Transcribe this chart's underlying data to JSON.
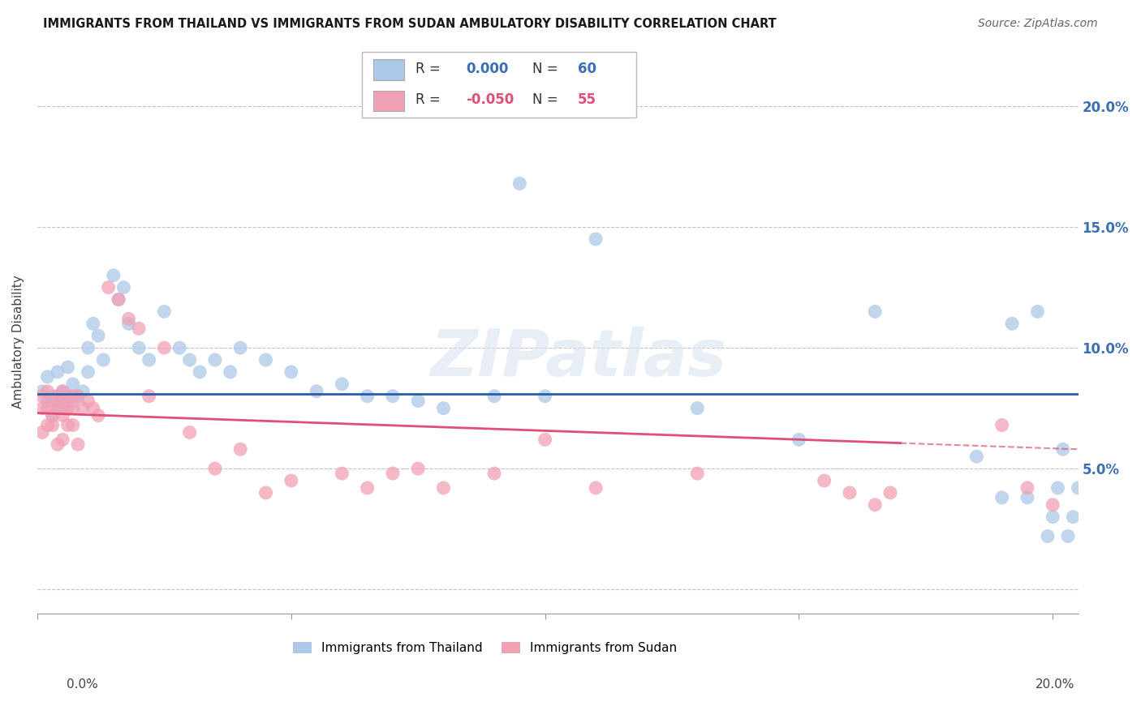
{
  "title": "IMMIGRANTS FROM THAILAND VS IMMIGRANTS FROM SUDAN AMBULATORY DISABILITY CORRELATION CHART",
  "source": "Source: ZipAtlas.com",
  "ylabel": "Ambulatory Disability",
  "yticks": [
    0.0,
    0.05,
    0.1,
    0.15,
    0.2
  ],
  "ytick_labels": [
    "",
    "5.0%",
    "10.0%",
    "15.0%",
    "20.0%"
  ],
  "xlim": [
    0.0,
    0.205
  ],
  "ylim": [
    -0.01,
    0.215
  ],
  "R_thailand": "0.000",
  "N_thailand": "60",
  "R_sudan": "-0.050",
  "N_sudan": "55",
  "color_thailand": "#adc8e8",
  "color_sudan": "#f2a0b5",
  "trendline_thailand_color": "#2b5ca8",
  "trendline_sudan_color": "#e05075",
  "trendline_thailand_y": 0.081,
  "trendline_sudan_x0": 0.0,
  "trendline_sudan_y0": 0.073,
  "trendline_sudan_x1": 0.205,
  "trendline_sudan_y1": 0.058,
  "trendline_sudan_solid_end": 0.17,
  "watermark": "ZIPatlas",
  "legend_label1": "Immigrants from Thailand",
  "legend_label2": "Immigrants from Sudan",
  "thailand_x": [
    0.001,
    0.002,
    0.002,
    0.003,
    0.003,
    0.004,
    0.004,
    0.005,
    0.005,
    0.006,
    0.006,
    0.007,
    0.007,
    0.008,
    0.009,
    0.01,
    0.01,
    0.011,
    0.012,
    0.013,
    0.015,
    0.016,
    0.017,
    0.018,
    0.02,
    0.022,
    0.025,
    0.028,
    0.03,
    0.032,
    0.035,
    0.038,
    0.04,
    0.045,
    0.05,
    0.055,
    0.06,
    0.065,
    0.07,
    0.075,
    0.08,
    0.09,
    0.095,
    0.1,
    0.11,
    0.13,
    0.15,
    0.165,
    0.185,
    0.19,
    0.192,
    0.195,
    0.197,
    0.199,
    0.2,
    0.201,
    0.202,
    0.203,
    0.204,
    0.205
  ],
  "thailand_y": [
    0.082,
    0.078,
    0.088,
    0.08,
    0.072,
    0.076,
    0.09,
    0.082,
    0.075,
    0.08,
    0.092,
    0.085,
    0.078,
    0.08,
    0.082,
    0.09,
    0.1,
    0.11,
    0.105,
    0.095,
    0.13,
    0.12,
    0.125,
    0.11,
    0.1,
    0.095,
    0.115,
    0.1,
    0.095,
    0.09,
    0.095,
    0.09,
    0.1,
    0.095,
    0.09,
    0.082,
    0.085,
    0.08,
    0.08,
    0.078,
    0.075,
    0.08,
    0.168,
    0.08,
    0.145,
    0.075,
    0.062,
    0.115,
    0.055,
    0.038,
    0.11,
    0.038,
    0.115,
    0.022,
    0.03,
    0.042,
    0.058,
    0.022,
    0.03,
    0.042
  ],
  "sudan_x": [
    0.001,
    0.001,
    0.001,
    0.002,
    0.002,
    0.002,
    0.003,
    0.003,
    0.003,
    0.004,
    0.004,
    0.004,
    0.005,
    0.005,
    0.005,
    0.005,
    0.006,
    0.006,
    0.006,
    0.007,
    0.007,
    0.007,
    0.008,
    0.008,
    0.009,
    0.01,
    0.011,
    0.012,
    0.014,
    0.016,
    0.018,
    0.02,
    0.022,
    0.025,
    0.03,
    0.035,
    0.04,
    0.045,
    0.05,
    0.06,
    0.065,
    0.07,
    0.075,
    0.08,
    0.09,
    0.1,
    0.11,
    0.13,
    0.155,
    0.16,
    0.165,
    0.168,
    0.19,
    0.195,
    0.2
  ],
  "sudan_y": [
    0.08,
    0.075,
    0.065,
    0.082,
    0.075,
    0.068,
    0.078,
    0.072,
    0.068,
    0.08,
    0.075,
    0.06,
    0.082,
    0.078,
    0.072,
    0.062,
    0.08,
    0.075,
    0.068,
    0.08,
    0.075,
    0.068,
    0.08,
    0.06,
    0.075,
    0.078,
    0.075,
    0.072,
    0.125,
    0.12,
    0.112,
    0.108,
    0.08,
    0.1,
    0.065,
    0.05,
    0.058,
    0.04,
    0.045,
    0.048,
    0.042,
    0.048,
    0.05,
    0.042,
    0.048,
    0.062,
    0.042,
    0.048,
    0.045,
    0.04,
    0.035,
    0.04,
    0.068,
    0.042,
    0.035
  ]
}
